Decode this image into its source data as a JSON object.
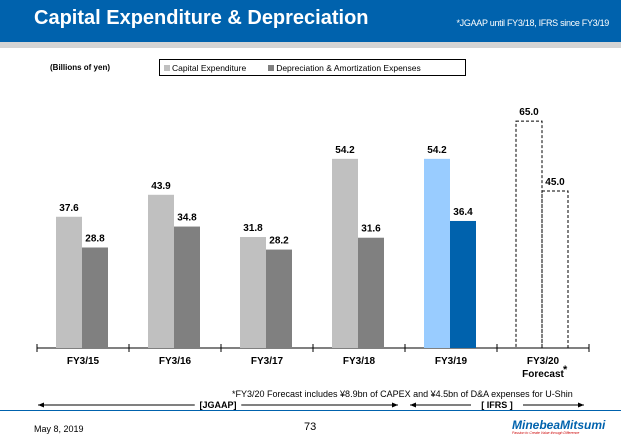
{
  "header": {
    "title": "Capital Expenditure & Depreciation",
    "note": "*JGAAP until FY3/18, IFRS since FY3/19"
  },
  "chart_data": {
    "type": "bar",
    "unit_label": "(Billions of yen)",
    "categories": [
      "FY3/15",
      "FY3/16",
      "FY3/17",
      "FY3/18",
      "FY3/19",
      "FY3/20"
    ],
    "category_sub": [
      "",
      "",
      "",
      "",
      "",
      "Forecast"
    ],
    "series": [
      {
        "name": "Capital Expenditure",
        "values": [
          37.6,
          43.9,
          31.8,
          54.2,
          54.2,
          65.0
        ],
        "color": "#c0c0c0",
        "highlight_color": "#99ccff"
      },
      {
        "name": "Depreciation & Amortization Expenses",
        "values": [
          28.8,
          34.8,
          28.2,
          31.6,
          36.4,
          45.0
        ],
        "color": "#808080",
        "highlight_color": "#0062ad"
      }
    ],
    "forecast_style": "dashed outline",
    "ylim": [
      0,
      70
    ],
    "grid": false,
    "legend_placement": "top"
  },
  "footnote": "*FY3/20 Forecast includes ¥8.9bn of CAPEX and ¥4.5bn of D&A expenses for U-Shin",
  "forecast_mark": "*",
  "periods": {
    "jgaap": "[JGAAP]",
    "ifrs": "[ IFRS ]"
  },
  "footer": {
    "date": "May 8, 2019",
    "page": "73",
    "logo": "MinebeaMitsumi",
    "tagline": "Passion to Create Value through Difference"
  }
}
